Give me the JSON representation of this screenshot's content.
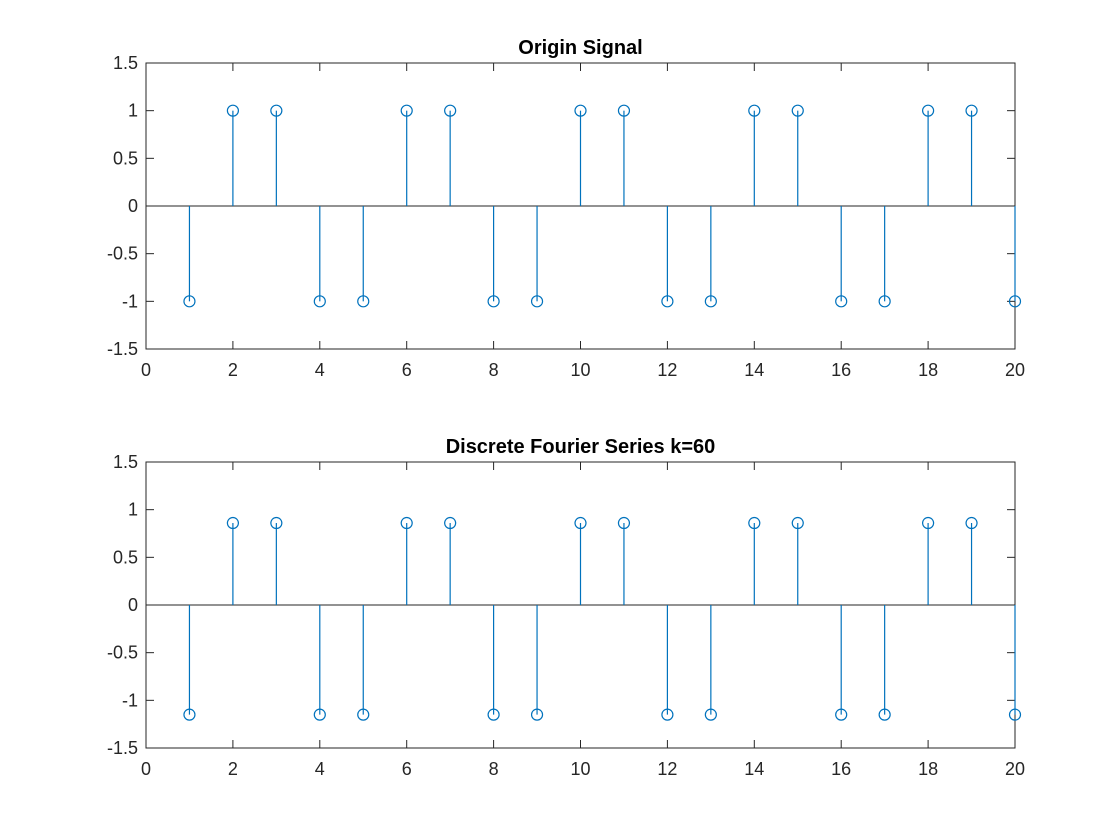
{
  "chart_data": [
    {
      "type": "stem",
      "title": "Origin Signal",
      "xlabel": "",
      "ylabel": "",
      "xlim": [
        0,
        20
      ],
      "ylim": [
        -1.5,
        1.5
      ],
      "x_ticks": [
        "0",
        "2",
        "4",
        "6",
        "8",
        "10",
        "12",
        "14",
        "16",
        "18",
        "20"
      ],
      "y_ticks": [
        "-1.5",
        "-1",
        "-0.5",
        "0",
        "0.5",
        "1",
        "1.5"
      ],
      "grid": false,
      "series": [
        {
          "x": [
            1,
            2,
            3,
            4,
            5,
            6,
            7,
            8,
            9,
            10,
            11,
            12,
            13,
            14,
            15,
            16,
            17,
            18,
            19,
            20
          ],
          "values": [
            -1,
            1,
            1,
            -1,
            -1,
            1,
            1,
            -1,
            -1,
            1,
            1,
            -1,
            -1,
            1,
            1,
            -1,
            -1,
            1,
            1,
            -1
          ],
          "color": "#0072BD"
        }
      ]
    },
    {
      "type": "stem",
      "title": "Discrete Fourier Series k=60",
      "xlabel": "",
      "ylabel": "",
      "xlim": [
        0,
        20
      ],
      "ylim": [
        -1.5,
        1.5
      ],
      "x_ticks": [
        "0",
        "2",
        "4",
        "6",
        "8",
        "10",
        "12",
        "14",
        "16",
        "18",
        "20"
      ],
      "y_ticks": [
        "-1.5",
        "-1",
        "-0.5",
        "0",
        "0.5",
        "1",
        "1.5"
      ],
      "grid": false,
      "series": [
        {
          "x": [
            1,
            2,
            3,
            4,
            5,
            6,
            7,
            8,
            9,
            10,
            11,
            12,
            13,
            14,
            15,
            16,
            17,
            18,
            19,
            20
          ],
          "values": [
            -1.15,
            0.86,
            0.86,
            -1.15,
            -1.15,
            0.86,
            0.86,
            -1.15,
            -1.15,
            0.86,
            0.86,
            -1.15,
            -1.15,
            0.86,
            0.86,
            -1.15,
            -1.15,
            0.86,
            0.86,
            -1.15
          ],
          "color": "#0072BD"
        }
      ]
    }
  ]
}
